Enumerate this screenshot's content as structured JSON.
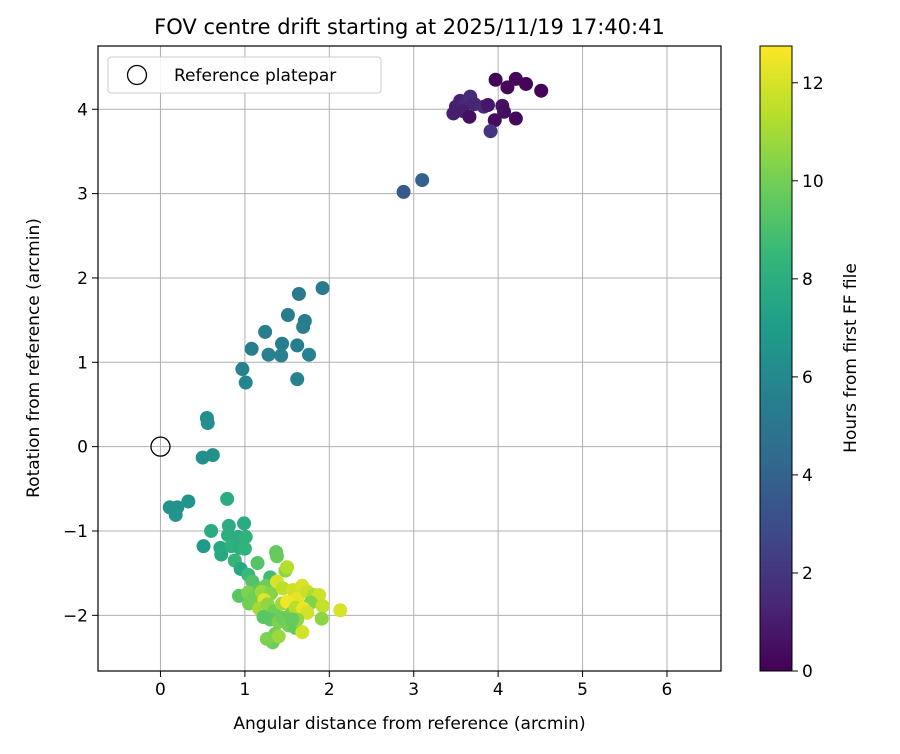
{
  "chart_data": {
    "type": "scatter",
    "title": "FOV centre drift starting at 2025/11/19 17:40:41",
    "xlabel": "Angular distance from reference (arcmin)",
    "ylabel": "Rotation from reference (arcmin)",
    "xlim": [
      -0.74,
      6.64
    ],
    "ylim": [
      -2.66,
      4.75
    ],
    "xticks": [
      0,
      1,
      2,
      3,
      4,
      5,
      6
    ],
    "yticks": [
      -2,
      -1,
      0,
      1,
      2,
      3,
      4
    ],
    "xtick_labels": [
      "0",
      "1",
      "2",
      "3",
      "4",
      "5",
      "6"
    ],
    "ytick_labels": [
      "−2",
      "−1",
      "0",
      "1",
      "2",
      "3",
      "4"
    ],
    "grid": true,
    "legend": {
      "position": "top-left",
      "entries": [
        "Reference platepar"
      ]
    },
    "reference_point": {
      "x": 0,
      "y": 0,
      "label": "Reference platepar"
    },
    "colorbar": {
      "label": "Hours from first FF file",
      "range": [
        0,
        12.75
      ],
      "ticks": [
        0,
        2,
        4,
        6,
        8,
        10,
        12
      ],
      "tick_labels": [
        "0",
        "2",
        "4",
        "6",
        "8",
        "10",
        "12"
      ],
      "colormap": "viridis"
    },
    "points": [
      {
        "x": 3.97,
        "y": 4.35,
        "c": 0.1
      },
      {
        "x": 4.21,
        "y": 4.36,
        "c": 0.2
      },
      {
        "x": 4.33,
        "y": 4.3,
        "c": 0.1
      },
      {
        "x": 4.51,
        "y": 4.22,
        "c": 0.1
      },
      {
        "x": 4.11,
        "y": 4.26,
        "c": 0.3
      },
      {
        "x": 3.5,
        "y": 4.03,
        "c": 1.0
      },
      {
        "x": 3.55,
        "y": 4.1,
        "c": 1.2
      },
      {
        "x": 3.62,
        "y": 4.08,
        "c": 1.4
      },
      {
        "x": 3.67,
        "y": 4.15,
        "c": 1.6
      },
      {
        "x": 3.72,
        "y": 4.06,
        "c": 1.3
      },
      {
        "x": 3.47,
        "y": 3.95,
        "c": 1.1
      },
      {
        "x": 3.58,
        "y": 3.98,
        "c": 1.0
      },
      {
        "x": 3.83,
        "y": 4.03,
        "c": 1.5
      },
      {
        "x": 3.88,
        "y": 4.05,
        "c": 0.8
      },
      {
        "x": 4.05,
        "y": 4.04,
        "c": 0.6
      },
      {
        "x": 4.07,
        "y": 3.97,
        "c": 0.5
      },
      {
        "x": 3.96,
        "y": 3.87,
        "c": 0.4
      },
      {
        "x": 4.21,
        "y": 3.89,
        "c": 0.3
      },
      {
        "x": 3.91,
        "y": 3.74,
        "c": 1.9
      },
      {
        "x": 3.66,
        "y": 3.91,
        "c": 0.5
      },
      {
        "x": 2.88,
        "y": 3.02,
        "c": 3.6
      },
      {
        "x": 3.1,
        "y": 3.16,
        "c": 3.9
      },
      {
        "x": 1.92,
        "y": 1.88,
        "c": 5.2
      },
      {
        "x": 1.64,
        "y": 1.81,
        "c": 5.2
      },
      {
        "x": 1.51,
        "y": 1.56,
        "c": 5.3
      },
      {
        "x": 1.71,
        "y": 1.49,
        "c": 5.3
      },
      {
        "x": 1.69,
        "y": 1.42,
        "c": 5.4
      },
      {
        "x": 1.24,
        "y": 1.36,
        "c": 5.4
      },
      {
        "x": 1.44,
        "y": 1.22,
        "c": 5.5
      },
      {
        "x": 1.62,
        "y": 1.2,
        "c": 5.5
      },
      {
        "x": 1.08,
        "y": 1.16,
        "c": 5.5
      },
      {
        "x": 1.28,
        "y": 1.09,
        "c": 5.6
      },
      {
        "x": 1.43,
        "y": 1.08,
        "c": 5.6
      },
      {
        "x": 1.76,
        "y": 1.09,
        "c": 5.6
      },
      {
        "x": 0.97,
        "y": 0.92,
        "c": 5.7
      },
      {
        "x": 1.62,
        "y": 0.8,
        "c": 5.7
      },
      {
        "x": 1.01,
        "y": 0.76,
        "c": 5.8
      },
      {
        "x": 0.55,
        "y": 0.34,
        "c": 6.3
      },
      {
        "x": 0.56,
        "y": 0.28,
        "c": 6.3
      },
      {
        "x": 0.5,
        "y": -0.13,
        "c": 6.4
      },
      {
        "x": 0.62,
        "y": -0.1,
        "c": 6.4
      },
      {
        "x": 0.11,
        "y": -0.72,
        "c": 6.5
      },
      {
        "x": 0.2,
        "y": -0.72,
        "c": 6.5
      },
      {
        "x": 0.33,
        "y": -0.65,
        "c": 6.6
      },
      {
        "x": 0.18,
        "y": -0.81,
        "c": 6.6
      },
      {
        "x": 0.51,
        "y": -1.18,
        "c": 6.9
      },
      {
        "x": 0.79,
        "y": -0.62,
        "c": 7.8
      },
      {
        "x": 0.6,
        "y": -1.0,
        "c": 7.8
      },
      {
        "x": 0.71,
        "y": -1.2,
        "c": 7.6
      },
      {
        "x": 0.72,
        "y": -1.28,
        "c": 7.7
      },
      {
        "x": 0.81,
        "y": -0.94,
        "c": 7.9
      },
      {
        "x": 0.99,
        "y": -0.91,
        "c": 7.8
      },
      {
        "x": 0.8,
        "y": -1.05,
        "c": 8.0
      },
      {
        "x": 0.84,
        "y": -1.18,
        "c": 8.1
      },
      {
        "x": 0.94,
        "y": -1.2,
        "c": 8.0
      },
      {
        "x": 0.92,
        "y": -1.07,
        "c": 7.9
      },
      {
        "x": 1.01,
        "y": -1.07,
        "c": 8.2
      },
      {
        "x": 1.0,
        "y": -1.21,
        "c": 8.3
      },
      {
        "x": 0.88,
        "y": -1.35,
        "c": 8.4
      },
      {
        "x": 0.95,
        "y": -1.45,
        "c": 7.6
      },
      {
        "x": 1.04,
        "y": -1.52,
        "c": 8.6
      },
      {
        "x": 1.15,
        "y": -1.38,
        "c": 9.3
      },
      {
        "x": 1.3,
        "y": -1.55,
        "c": 8.8
      },
      {
        "x": 1.37,
        "y": -1.25,
        "c": 9.6
      },
      {
        "x": 1.38,
        "y": -1.3,
        "c": 9.7
      },
      {
        "x": 1.48,
        "y": -1.47,
        "c": 10.5
      },
      {
        "x": 1.5,
        "y": -1.43,
        "c": 11.3
      },
      {
        "x": 1.09,
        "y": -1.6,
        "c": 9.2
      },
      {
        "x": 1.17,
        "y": -1.68,
        "c": 9.5
      },
      {
        "x": 1.25,
        "y": -1.65,
        "c": 9.8
      },
      {
        "x": 0.93,
        "y": -1.77,
        "c": 9.4
      },
      {
        "x": 1.04,
        "y": -1.73,
        "c": 10.2
      },
      {
        "x": 1.12,
        "y": -1.78,
        "c": 10.0
      },
      {
        "x": 1.2,
        "y": -1.72,
        "c": 10.8
      },
      {
        "x": 1.31,
        "y": -1.74,
        "c": 10.4
      },
      {
        "x": 1.38,
        "y": -1.6,
        "c": 12.0
      },
      {
        "x": 1.45,
        "y": -1.68,
        "c": 11.5
      },
      {
        "x": 1.57,
        "y": -1.7,
        "c": 11.8
      },
      {
        "x": 1.62,
        "y": -1.8,
        "c": 12.3
      },
      {
        "x": 1.68,
        "y": -1.65,
        "c": 12.0
      },
      {
        "x": 1.74,
        "y": -1.72,
        "c": 11.7
      },
      {
        "x": 1.82,
        "y": -1.76,
        "c": 11.2
      },
      {
        "x": 1.88,
        "y": -1.76,
        "c": 11.8
      },
      {
        "x": 1.78,
        "y": -1.85,
        "c": 10.3
      },
      {
        "x": 1.92,
        "y": -1.89,
        "c": 11.6
      },
      {
        "x": 2.13,
        "y": -1.94,
        "c": 12.0
      },
      {
        "x": 1.91,
        "y": -2.04,
        "c": 10.5
      },
      {
        "x": 1.23,
        "y": -1.82,
        "c": 12.2
      },
      {
        "x": 1.05,
        "y": -1.86,
        "c": 10.0
      },
      {
        "x": 1.17,
        "y": -1.92,
        "c": 11.0
      },
      {
        "x": 1.27,
        "y": -1.87,
        "c": 10.6
      },
      {
        "x": 1.35,
        "y": -1.95,
        "c": 9.9
      },
      {
        "x": 1.44,
        "y": -1.86,
        "c": 10.9
      },
      {
        "x": 1.5,
        "y": -1.84,
        "c": 12.5
      },
      {
        "x": 1.55,
        "y": -1.98,
        "c": 10.1
      },
      {
        "x": 1.6,
        "y": -1.91,
        "c": 11.4
      },
      {
        "x": 1.69,
        "y": -1.92,
        "c": 12.4
      },
      {
        "x": 1.74,
        "y": -1.97,
        "c": 11.9
      },
      {
        "x": 1.3,
        "y": -2.05,
        "c": 9.5
      },
      {
        "x": 1.4,
        "y": -2.08,
        "c": 10.2
      },
      {
        "x": 1.45,
        "y": -2.03,
        "c": 9.8
      },
      {
        "x": 1.52,
        "y": -2.12,
        "c": 10.0
      },
      {
        "x": 1.6,
        "y": -2.15,
        "c": 9.6
      },
      {
        "x": 1.62,
        "y": -2.05,
        "c": 10.6
      },
      {
        "x": 1.36,
        "y": -2.22,
        "c": 10.0
      },
      {
        "x": 1.33,
        "y": -2.32,
        "c": 9.9
      },
      {
        "x": 1.26,
        "y": -2.28,
        "c": 10.2
      },
      {
        "x": 1.4,
        "y": -2.25,
        "c": 10.8
      },
      {
        "x": 1.68,
        "y": -2.2,
        "c": 11.9
      },
      {
        "x": 1.22,
        "y": -2.02,
        "c": 9.4
      },
      {
        "x": 1.56,
        "y": -2.05,
        "c": 9.7
      }
    ]
  }
}
